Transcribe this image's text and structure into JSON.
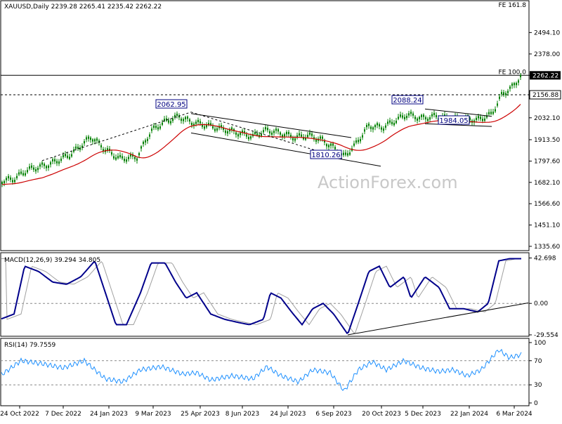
{
  "chart_data": [
    {
      "type": "candlestick",
      "title": "XAUUSD,Daily",
      "ohlc_label": "2239.28 2265.41 2235.42 2262.22",
      "watermark": "ActionForex.com",
      "y_ticks": [
        "2494.10",
        "2378.00",
        "2262.22",
        "2156.88",
        "2032.10",
        "1913.50",
        "1797.60",
        "1682.10",
        "1566.60",
        "1451.10",
        "1335.60"
      ],
      "y_tick_values": [
        2494.1,
        2378.0,
        2262.22,
        2156.88,
        2032.1,
        1913.5,
        1797.6,
        1682.1,
        1566.6,
        1451.1,
        1335.6
      ],
      "ylim": [
        1320,
        2640
      ],
      "last_price": "2262.22",
      "level_labels": [
        {
          "text": "FE 161.8",
          "value": 2640
        },
        {
          "text": "FE 100.0",
          "value": 2262.22
        }
      ],
      "annotations": [
        {
          "text": "2062.95",
          "date": "2023-05-04",
          "value": 2062.95
        },
        {
          "text": "1810.26",
          "date": "2023-10-05",
          "value": 1810.26
        },
        {
          "text": "2088.24",
          "date": "2023-12-04",
          "value": 2088.24
        },
        {
          "text": "1984.05",
          "date": "2024-02-14",
          "value": 1984.05
        }
      ],
      "moving_average_color": "#cc0000",
      "candle_color": "#008000"
    },
    {
      "type": "line",
      "title": "MACD(12,26,9) 39.294 34.805",
      "y_ticks": [
        "42.698",
        "0.00",
        "-29.554"
      ],
      "y_tick_values": [
        42.698,
        0,
        -29.554
      ],
      "ylim": [
        -29.554,
        45
      ],
      "series": [
        {
          "name": "MACD",
          "color": "#00008b"
        },
        {
          "name": "Signal",
          "color": "#a0a0a0"
        }
      ]
    },
    {
      "type": "line",
      "title": "RSI(14) 79.7559",
      "y_ticks": [
        "100",
        "70",
        "30",
        "0"
      ],
      "y_tick_values": [
        100,
        70,
        30,
        0
      ],
      "ylim": [
        0,
        100
      ],
      "series": [
        {
          "name": "RSI",
          "color": "#1e90ff"
        }
      ]
    }
  ],
  "x_axis": {
    "tick_labels": [
      "24 Oct 2022",
      "7 Dec 2022",
      "24 Jan 2023",
      "9 Mar 2023",
      "25 Apr 2023",
      "8 Jun 2023",
      "24 Jul 2023",
      "6 Sep 2023",
      "20 Oct 2023",
      "5 Dec 2023",
      "22 Jan 2024",
      "6 Mar 2024"
    ]
  }
}
